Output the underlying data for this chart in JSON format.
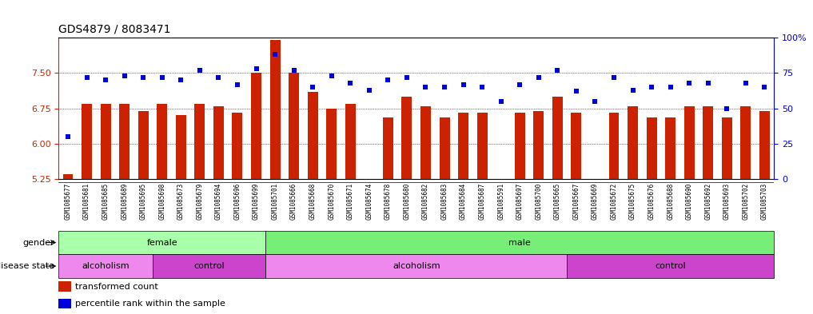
{
  "title": "GDS4879 / 8083471",
  "samples": [
    "GSM1085677",
    "GSM1085681",
    "GSM1085685",
    "GSM1085689",
    "GSM1085695",
    "GSM1085698",
    "GSM1085673",
    "GSM1085679",
    "GSM1085694",
    "GSM1085696",
    "GSM1085699",
    "GSM1085701",
    "GSM1085666",
    "GSM1085668",
    "GSM1085670",
    "GSM1085671",
    "GSM1085674",
    "GSM1085678",
    "GSM1085680",
    "GSM1085682",
    "GSM1085683",
    "GSM1085684",
    "GSM1085687",
    "GSM1085591",
    "GSM1085697",
    "GSM1085700",
    "GSM1085665",
    "GSM1085667",
    "GSM1085669",
    "GSM1085672",
    "GSM1085675",
    "GSM1085676",
    "GSM1085688",
    "GSM1085690",
    "GSM1085692",
    "GSM1085693",
    "GSM1085702",
    "GSM1085703"
  ],
  "bar_values": [
    5.35,
    6.85,
    6.85,
    6.85,
    6.7,
    6.85,
    6.6,
    6.85,
    6.8,
    6.65,
    7.5,
    8.2,
    7.5,
    7.1,
    6.75,
    6.85,
    5.15,
    6.55,
    7.0,
    6.8,
    6.55,
    6.65,
    6.65,
    5.25,
    6.65,
    6.7,
    7.0,
    6.65,
    5.1,
    6.65,
    6.8,
    6.55,
    6.55,
    6.8,
    6.8,
    6.55,
    6.8,
    6.7
  ],
  "percentile_values": [
    30,
    72,
    70,
    73,
    72,
    72,
    70,
    77,
    72,
    67,
    78,
    88,
    77,
    65,
    73,
    68,
    63,
    70,
    72,
    65,
    65,
    67,
    65,
    55,
    67,
    72,
    77,
    62,
    55,
    72,
    63,
    65,
    65,
    68,
    68,
    50,
    68,
    65
  ],
  "ylim_left": [
    5.25,
    8.25
  ],
  "ylim_right": [
    0,
    100
  ],
  "yticks_left": [
    5.25,
    6.0,
    6.75,
    7.5
  ],
  "yticks_right": [
    0,
    25,
    50,
    75,
    100
  ],
  "bar_color": "#cc2200",
  "dot_color": "#0000dd",
  "background_color": "#ffffff",
  "grid_color": "#000000",
  "gender_segments": [
    {
      "label": "female",
      "start": 0,
      "end": 11,
      "color": "#aaffaa"
    },
    {
      "label": "male",
      "start": 11,
      "end": 38,
      "color": "#77ee77"
    }
  ],
  "disease_segments": [
    {
      "label": "alcoholism",
      "start": 0,
      "end": 5,
      "color": "#ee88ee"
    },
    {
      "label": "control",
      "start": 5,
      "end": 11,
      "color": "#cc44cc"
    },
    {
      "label": "alcoholism",
      "start": 11,
      "end": 27,
      "color": "#ee88ee"
    },
    {
      "label": "control",
      "start": 27,
      "end": 38,
      "color": "#cc44cc"
    }
  ],
  "legend_bar_label": "transformed count",
  "legend_dot_label": "percentile rank within the sample",
  "gender_label": "gender",
  "disease_label": "disease state",
  "title_fontsize": 10,
  "tick_fontsize": 5.5,
  "axis_label_color_left": "#cc2200",
  "axis_label_color_right": "#0000dd"
}
